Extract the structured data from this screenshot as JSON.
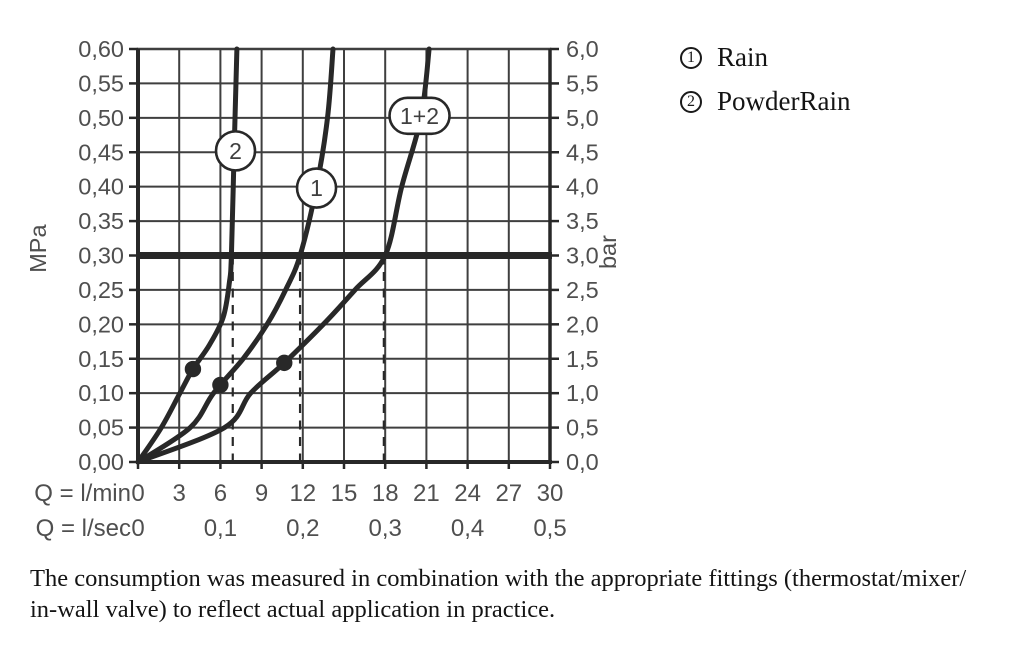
{
  "legend": {
    "items": [
      {
        "symbol": "1",
        "label": "Rain"
      },
      {
        "symbol": "2",
        "label": "PowderRain"
      }
    ]
  },
  "footer": {
    "lines": [
      "The consumption was measured in combination with the appropriate fittings (thermostat/mixer/",
      "in-wall valve) to reflect actual application in practice."
    ]
  },
  "chart_data": {
    "type": "line",
    "title": "",
    "x_axis": {
      "row1_label": "Q = l/min",
      "row2_label": "Q = l/sec",
      "min": 0,
      "max": 30,
      "step": 3,
      "lmin_tick_labels": [
        "0",
        "3",
        "6",
        "9",
        "12",
        "15",
        "18",
        "21",
        "24",
        "27",
        "30"
      ],
      "lsec_ticks": [
        {
          "q": 0,
          "label": "0"
        },
        {
          "q": 6,
          "label": "0,1"
        },
        {
          "q": 12,
          "label": "0,2"
        },
        {
          "q": 18,
          "label": "0,3"
        },
        {
          "q": 24,
          "label": "0,4"
        },
        {
          "q": 30,
          "label": "0,5"
        }
      ]
    },
    "y_axis_left": {
      "label": "MPa",
      "min": 0,
      "max": 0.6,
      "step": 0.05,
      "tick_labels": [
        "0,00",
        "0,05",
        "0,10",
        "0,15",
        "0,20",
        "0,25",
        "0,30",
        "0,35",
        "0,40",
        "0,45",
        "0,50",
        "0,55",
        "0,60"
      ]
    },
    "y_axis_right": {
      "label": "bar",
      "tick_labels": [
        "0,0",
        "0,5",
        "1,0",
        "1,5",
        "2,0",
        "2,5",
        "3,0",
        "3,5",
        "4,0",
        "4,5",
        "5,0",
        "5,5",
        "6,0"
      ]
    },
    "reference_line_mpa": 0.3,
    "dashed_lines_lmin": [
      6.9,
      11.8,
      17.9
    ],
    "series": [
      {
        "id": "2",
        "badge": {
          "label": "2",
          "shape": "circle",
          "q": 7.1,
          "p": 0.452
        },
        "dot": [
          4.0,
          0.135
        ],
        "points": [
          [
            0,
            0
          ],
          [
            1.7,
            0.05
          ],
          [
            3.05,
            0.1
          ],
          [
            4.0,
            0.135
          ],
          [
            5.2,
            0.17
          ],
          [
            6.2,
            0.21
          ],
          [
            6.65,
            0.26
          ],
          [
            6.8,
            0.3
          ],
          [
            7.0,
            0.45
          ],
          [
            7.2,
            0.6
          ]
        ]
      },
      {
        "id": "1",
        "badge": {
          "label": "1",
          "shape": "circle",
          "q": 13.0,
          "p": 0.398
        },
        "dot": [
          6.0,
          0.112
        ],
        "points": [
          [
            0,
            0
          ],
          [
            3.8,
            0.05
          ],
          [
            5.5,
            0.1
          ],
          [
            7.65,
            0.15
          ],
          [
            9.4,
            0.2
          ],
          [
            10.75,
            0.25
          ],
          [
            11.8,
            0.3
          ],
          [
            13.0,
            0.4
          ],
          [
            13.8,
            0.5
          ],
          [
            14.2,
            0.6
          ]
        ]
      },
      {
        "id": "1+2",
        "badge": {
          "label": "1+2",
          "shape": "stadium",
          "q": 20.5,
          "p": 0.503
        },
        "dot": [
          10.65,
          0.144
        ],
        "points": [
          [
            0,
            0
          ],
          [
            6.3,
            0.05
          ],
          [
            8.2,
            0.1
          ],
          [
            10.65,
            0.144
          ],
          [
            13.5,
            0.2
          ],
          [
            15.8,
            0.25
          ],
          [
            18.0,
            0.3
          ],
          [
            19.2,
            0.4
          ],
          [
            20.6,
            0.5
          ],
          [
            21.2,
            0.6
          ]
        ]
      }
    ],
    "grid": true,
    "legend_position": "top-right",
    "colors": {
      "curve": "#282828",
      "grid": "#3f3f3f",
      "tick_text": "#4f4f4f",
      "body_text": "#141414",
      "background": "#ffffff"
    }
  }
}
